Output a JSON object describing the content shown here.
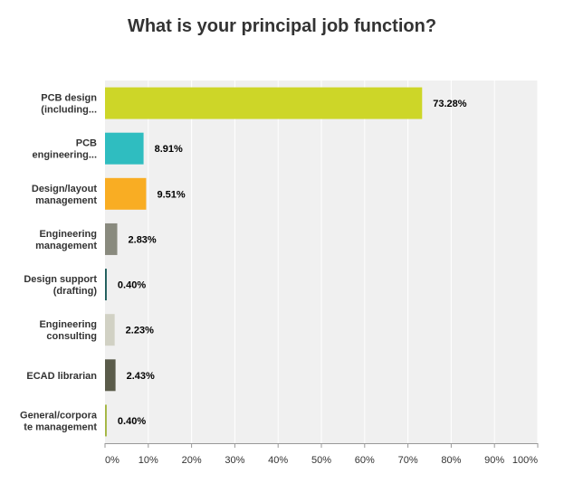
{
  "chart_data": {
    "type": "bar",
    "orientation": "horizontal",
    "title": "What is your principal job function?",
    "categories": [
      [
        "PCB design",
        "(including..."
      ],
      [
        "PCB",
        "engineering..."
      ],
      [
        "Design/layout",
        "management"
      ],
      [
        "Engineering",
        "management"
      ],
      [
        "Design support",
        "(drafting)"
      ],
      [
        "Engineering",
        "consulting"
      ],
      [
        "ECAD librarian"
      ],
      [
        "General/corpora",
        "te management"
      ]
    ],
    "values": [
      73.28,
      8.91,
      9.51,
      2.83,
      0.4,
      2.23,
      2.43,
      0.4
    ],
    "value_labels": [
      "73.28%",
      "8.91%",
      "9.51%",
      "2.83%",
      "0.40%",
      "2.23%",
      "2.43%",
      "0.40%"
    ],
    "colors": [
      "#cdd628",
      "#2fbdc0",
      "#f9ad23",
      "#898a7e",
      "#1d5c5a",
      "#d1d1c4",
      "#5a5b4a",
      "#a3b641"
    ],
    "xlim": [
      0,
      100
    ],
    "x_ticks": [
      0,
      10,
      20,
      30,
      40,
      50,
      60,
      70,
      80,
      90,
      100
    ],
    "x_tick_labels": [
      "0%",
      "10%",
      "20%",
      "30%",
      "40%",
      "50%",
      "60%",
      "70%",
      "80%",
      "90%",
      "100%"
    ],
    "grid": true,
    "plot_background": "#f0f0f0"
  }
}
